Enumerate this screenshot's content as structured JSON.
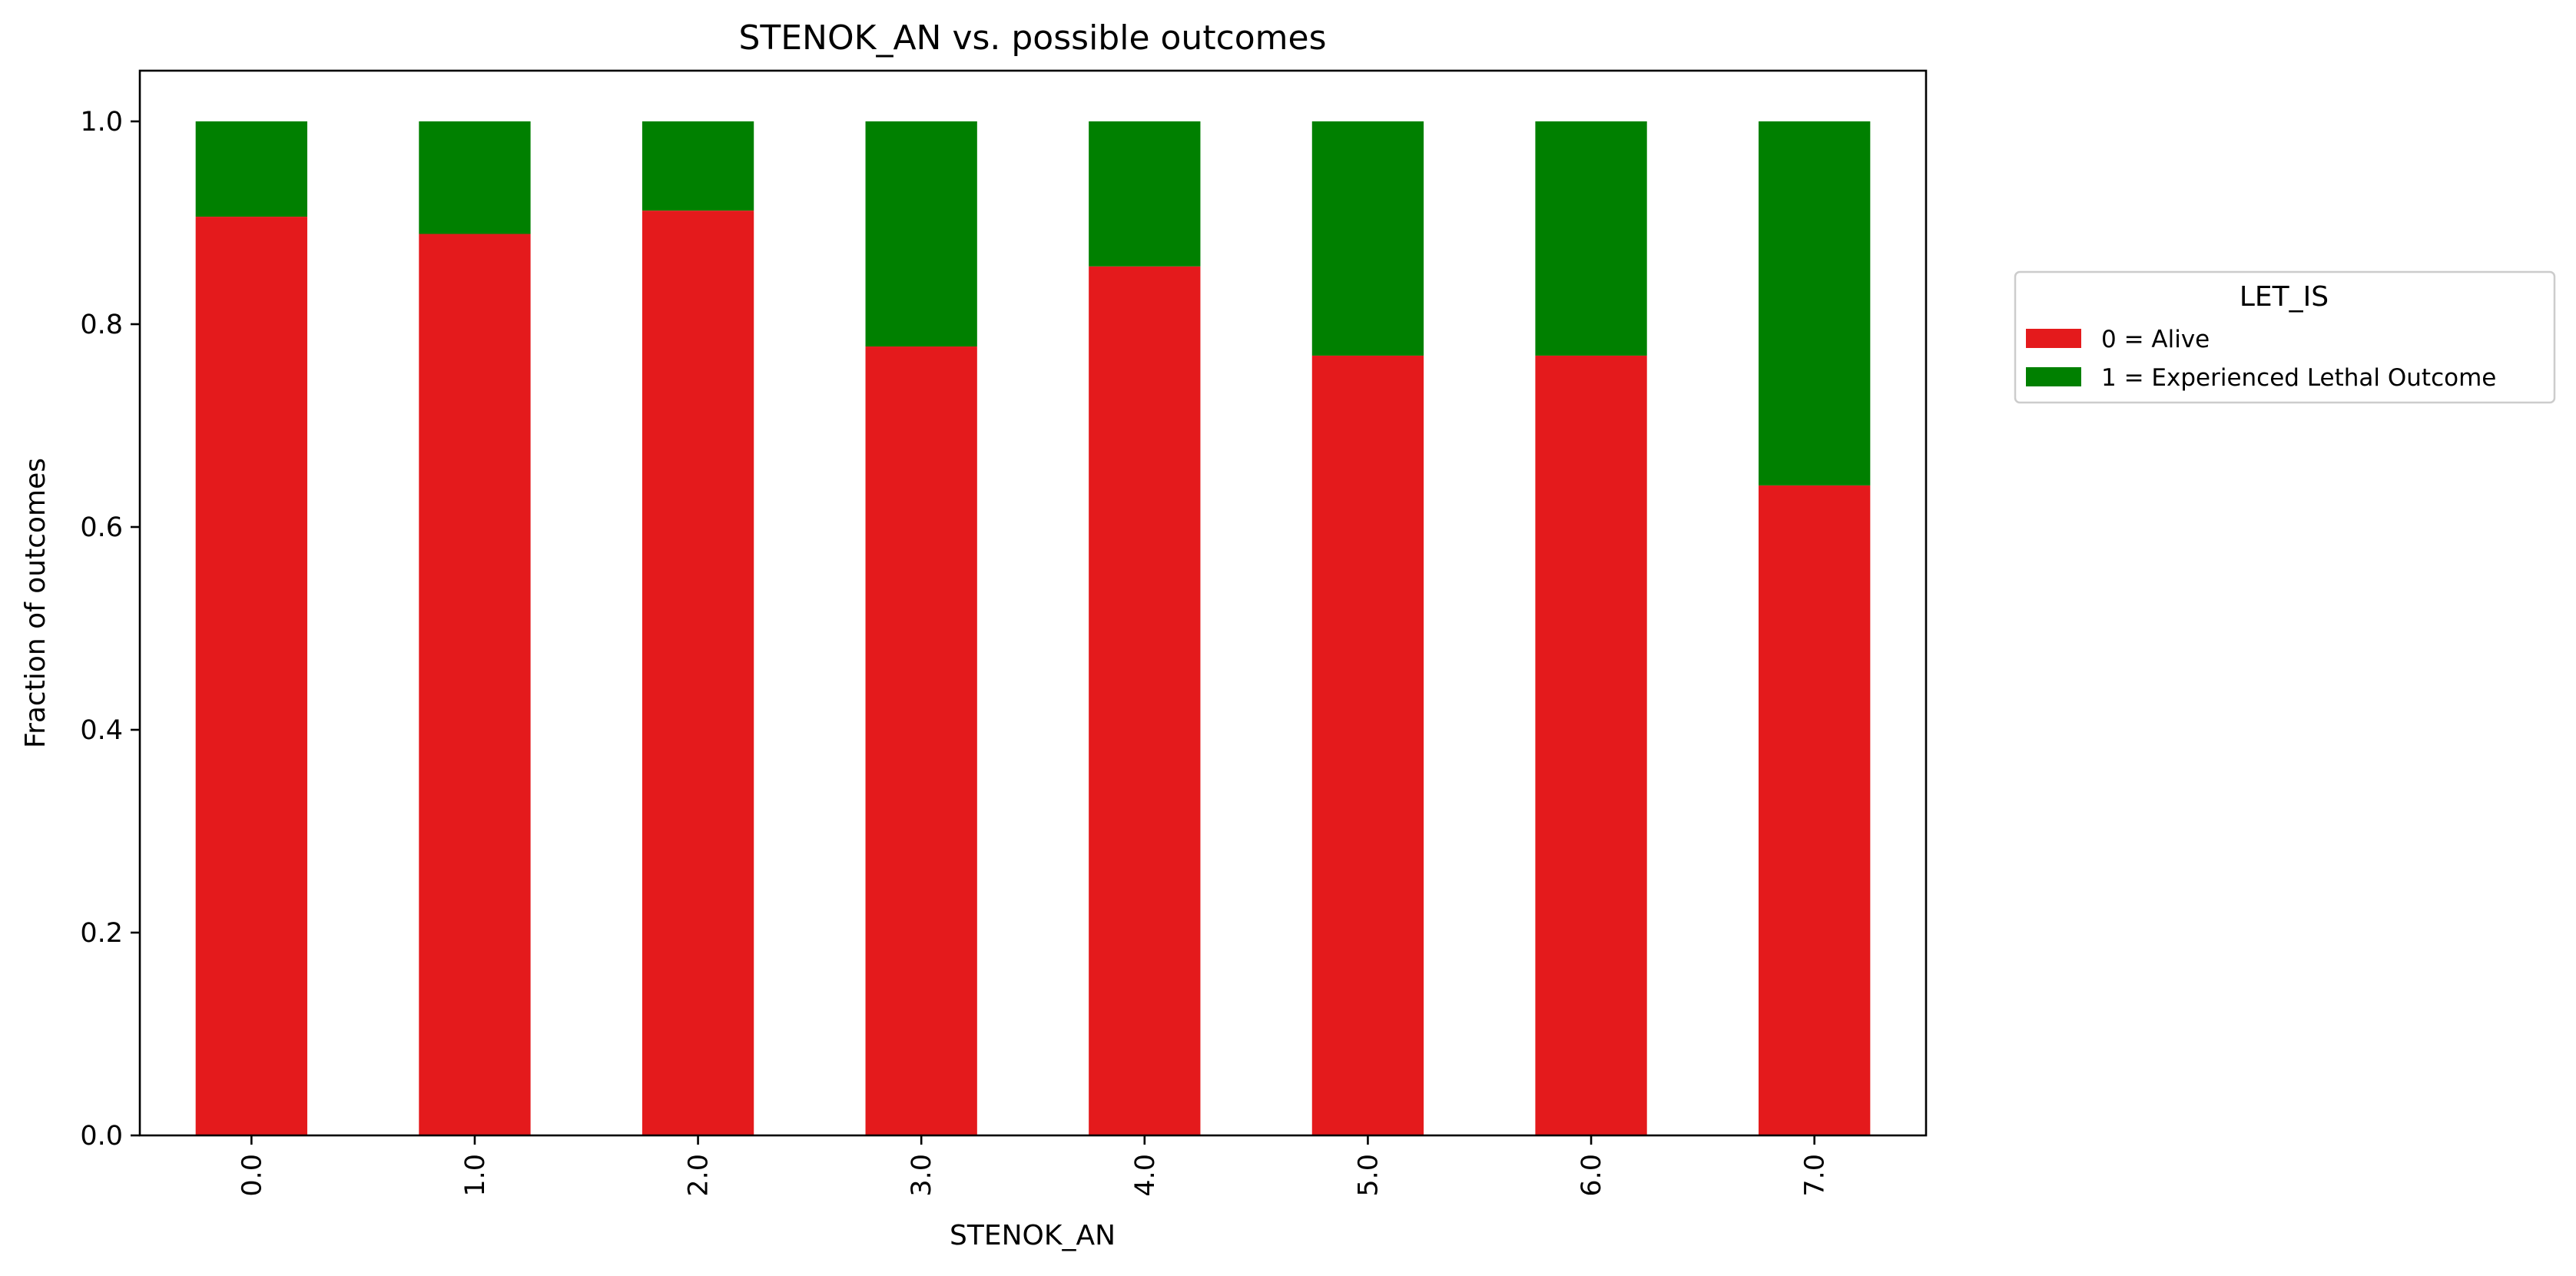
{
  "chart_data": {
    "type": "bar",
    "stacked": true,
    "title": "STENOK_AN vs. possible outcomes",
    "xlabel": "STENOK_AN",
    "ylabel": "Fraction of outcomes",
    "categories": [
      "0.0",
      "1.0",
      "2.0",
      "3.0",
      "4.0",
      "5.0",
      "6.0",
      "7.0"
    ],
    "series": [
      {
        "name": "0 = Alive",
        "color": "#e41a1c",
        "values": [
          0.906,
          0.889,
          0.912,
          0.778,
          0.857,
          0.769,
          0.769,
          0.641
        ]
      },
      {
        "name": "1 = Experienced Lethal Outcome",
        "color": "#008000",
        "values": [
          0.094,
          0.111,
          0.088,
          0.222,
          0.143,
          0.231,
          0.231,
          0.359
        ]
      }
    ],
    "ylim": [
      0,
      1.05
    ],
    "yticks": [
      "0.0",
      "0.2",
      "0.4",
      "0.6",
      "0.8",
      "1.0"
    ],
    "legend": {
      "title": "LET_IS",
      "placement": "outside right"
    },
    "grid": false
  }
}
